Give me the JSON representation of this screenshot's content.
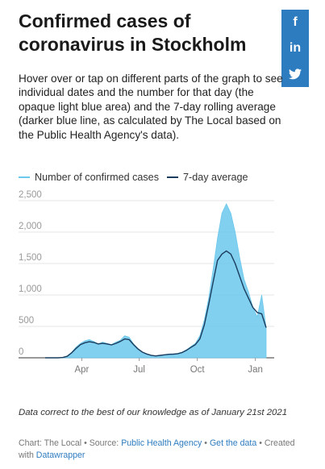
{
  "header": {
    "title": "Confirmed cases of coronavirus in Stockholm",
    "intro": "Hover over or tap on different parts of the graph to see individual dates and the number for that day (the opaque light blue area) and the 7-day rolling average (darker blue line, as calculated by The Local based on the Public Health Agency's data)."
  },
  "social": {
    "facebook": "f",
    "linkedin": "in",
    "twitter": "twitter"
  },
  "colors": {
    "cases": "#6cc8ec",
    "average": "#1a3c5e",
    "grid": "#e6e6e6",
    "link": "#2e7cc0"
  },
  "chart_data": {
    "type": "area",
    "x_unit": "week",
    "x_start": "2020-02-03",
    "x": [
      "2020-02-03",
      "2020-02-10",
      "2020-02-17",
      "2020-02-24",
      "2020-03-02",
      "2020-03-09",
      "2020-03-16",
      "2020-03-23",
      "2020-03-30",
      "2020-04-06",
      "2020-04-13",
      "2020-04-20",
      "2020-04-27",
      "2020-05-04",
      "2020-05-11",
      "2020-05-18",
      "2020-05-25",
      "2020-06-01",
      "2020-06-08",
      "2020-06-15",
      "2020-06-22",
      "2020-06-29",
      "2020-07-06",
      "2020-07-13",
      "2020-07-20",
      "2020-07-27",
      "2020-08-03",
      "2020-08-10",
      "2020-08-17",
      "2020-08-24",
      "2020-08-31",
      "2020-09-07",
      "2020-09-14",
      "2020-09-21",
      "2020-09-28",
      "2020-10-05",
      "2020-10-12",
      "2020-10-19",
      "2020-10-26",
      "2020-11-02",
      "2020-11-09",
      "2020-11-16",
      "2020-11-23",
      "2020-11-30",
      "2020-12-07",
      "2020-12-14",
      "2020-12-21",
      "2020-12-28",
      "2021-01-04",
      "2021-01-11",
      "2021-01-18"
    ],
    "series": [
      {
        "name": "Number of confirmed cases",
        "values": [
          0,
          0,
          0,
          0,
          5,
          30,
          90,
          170,
          230,
          270,
          290,
          260,
          220,
          250,
          230,
          210,
          250,
          280,
          350,
          330,
          220,
          150,
          90,
          60,
          40,
          30,
          40,
          50,
          60,
          60,
          70,
          90,
          130,
          180,
          230,
          350,
          600,
          950,
          1400,
          1900,
          2300,
          2450,
          2300,
          2000,
          1600,
          1250,
          1050,
          800,
          650,
          1000,
          480
        ]
      },
      {
        "name": "7-day average",
        "values": [
          0,
          0,
          0,
          0,
          5,
          25,
          80,
          150,
          210,
          240,
          255,
          245,
          220,
          230,
          220,
          205,
          230,
          260,
          300,
          290,
          210,
          140,
          90,
          60,
          40,
          30,
          38,
          48,
          55,
          58,
          65,
          85,
          120,
          165,
          210,
          300,
          520,
          850,
          1200,
          1550,
          1650,
          1700,
          1650,
          1500,
          1300,
          1100,
          950,
          800,
          720,
          700,
          480
        ]
      }
    ],
    "y_ticks": [
      0,
      500,
      1000,
      1500,
      2000,
      2500
    ],
    "y_tick_labels": [
      "0",
      "500",
      "1,000",
      "1,500",
      "2,000",
      "2,500"
    ],
    "x_tick_labels": [
      "Apr",
      "Jul",
      "Oct",
      "Jan"
    ],
    "ylim": [
      0,
      2500
    ],
    "grid": true,
    "legend": "top-left"
  },
  "footer": {
    "note": "Data correct to the best of our knowledge as of January 21st 2021",
    "chart_prefix": "Chart: The Local • Source:",
    "source_link": "Public Health Agency",
    "sep1": "•",
    "data_link": "Get the data",
    "sep2": "•",
    "created_prefix": "Created with",
    "tool_link": "Datawrapper"
  }
}
